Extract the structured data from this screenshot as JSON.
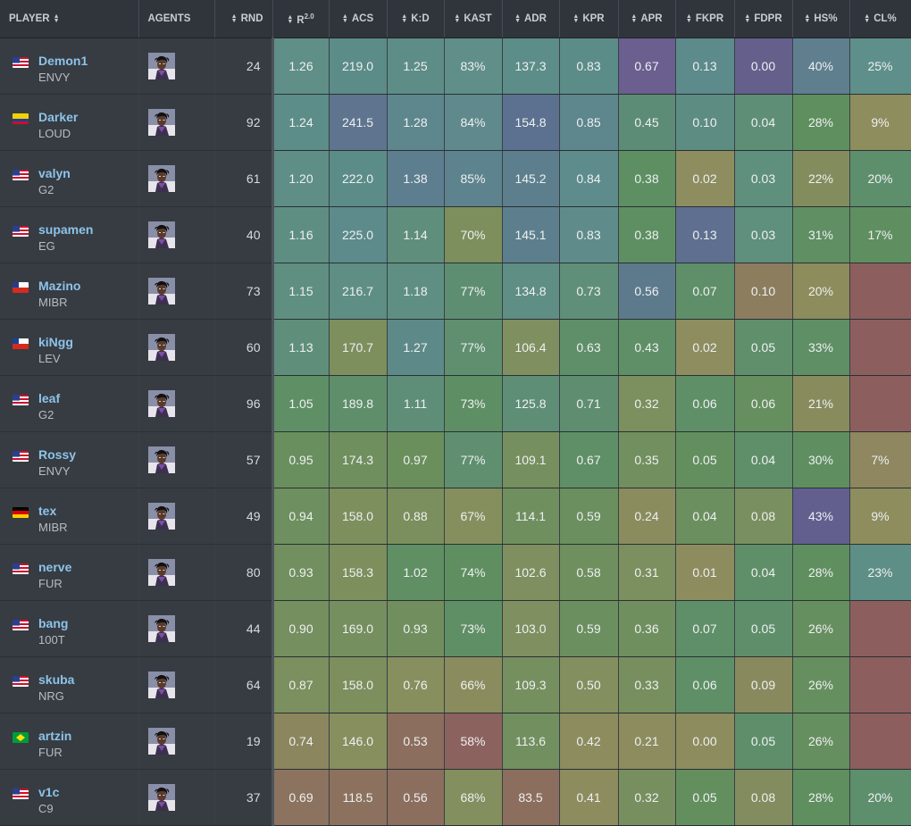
{
  "columns": {
    "player": "PLAYER",
    "agents": "AGENTS",
    "rnd": "RND",
    "rating": "R",
    "rating_sup": "2.0",
    "acs": "ACS",
    "kd": "K:D",
    "kast": "KAST",
    "adr": "ADR",
    "kpr": "KPR",
    "apr": "APR",
    "fkpr": "FKPR",
    "fdpr": "FDPR",
    "hs": "HS%",
    "cl": "CL%"
  },
  "agent_icon": "agent-portrait-icon",
  "rows": [
    {
      "name": "Demon1",
      "team": "ENVY",
      "flag": "us",
      "rnd": "24",
      "rating": "1.26",
      "acs": "219.0",
      "kd": "1.25",
      "kast": "83%",
      "adr": "137.3",
      "kpr": "0.83",
      "apr": "0.67",
      "fkpr": "0.13",
      "fdpr": "0.00",
      "hs": "40%",
      "cl": "25%",
      "colors": [
        "#5f8f86",
        "#5c8c88",
        "#5d8d86",
        "#5f8f88",
        "#5d8d88",
        "#5c8c88",
        "#6a5f8f",
        "#5d8a8b",
        "#655f8c",
        "#5f7f8f",
        "#5e8f8b"
      ]
    },
    {
      "name": "Darker",
      "team": "LOUD",
      "flag": "co",
      "rnd": "92",
      "rating": "1.24",
      "acs": "241.5",
      "kd": "1.28",
      "kast": "84%",
      "adr": "154.8",
      "kpr": "0.85",
      "apr": "0.45",
      "fkpr": "0.10",
      "fdpr": "0.04",
      "hs": "28%",
      "cl": "9%",
      "colors": [
        "#5d8d88",
        "#5f758f",
        "#5d868d",
        "#5f898d",
        "#5b718f",
        "#5d868d",
        "#5c8c75",
        "#5d8c83",
        "#5e8e76",
        "#5f8f5f",
        "#8d8d5e"
      ]
    },
    {
      "name": "valyn",
      "team": "G2",
      "flag": "us",
      "rnd": "61",
      "rating": "1.20",
      "acs": "222.0",
      "kd": "1.38",
      "kast": "85%",
      "adr": "145.2",
      "kpr": "0.84",
      "apr": "0.38",
      "fkpr": "0.02",
      "fdpr": "0.03",
      "hs": "22%",
      "cl": "20%",
      "colors": [
        "#5e8e86",
        "#5c8c88",
        "#5d7e8f",
        "#5d838e",
        "#5d7f8d",
        "#5e8c8d",
        "#5d8f62",
        "#8d8d60",
        "#5f8f7d",
        "#838c5d",
        "#5e8f6d"
      ]
    },
    {
      "name": "supamen",
      "team": "EG",
      "flag": "us",
      "rnd": "40",
      "rating": "1.16",
      "acs": "225.0",
      "kd": "1.14",
      "kast": "70%",
      "adr": "145.1",
      "kpr": "0.83",
      "apr": "0.38",
      "fkpr": "0.13",
      "fdpr": "0.03",
      "hs": "31%",
      "cl": "17%",
      "colors": [
        "#5e8e82",
        "#5d8a8b",
        "#5f8f7c",
        "#7c8f5c",
        "#5d7f8d",
        "#5f8c8b",
        "#5d8f62",
        "#5f6f8f",
        "#5f8f7d",
        "#5f8f63",
        "#5f8f60"
      ]
    },
    {
      "name": "Mazino",
      "team": "MIBR",
      "flag": "cl",
      "rnd": "73",
      "rating": "1.15",
      "acs": "216.7",
      "kd": "1.18",
      "kast": "77%",
      "adr": "134.8",
      "kpr": "0.73",
      "apr": "0.56",
      "fkpr": "0.07",
      "fdpr": "0.10",
      "hs": "20%",
      "cl": "",
      "colors": [
        "#5f8f80",
        "#5e8e84",
        "#5f8f82",
        "#5e8e72",
        "#5e8e84",
        "#5f8f78",
        "#5d7a8d",
        "#5f8f68",
        "#8c7d5e",
        "#8c8c5c",
        "#8c5e5e"
      ]
    },
    {
      "name": "kiNgg",
      "team": "LEV",
      "flag": "cl",
      "rnd": "60",
      "rating": "1.13",
      "acs": "170.7",
      "kd": "1.27",
      "kast": "77%",
      "adr": "106.4",
      "kpr": "0.63",
      "apr": "0.43",
      "fkpr": "0.02",
      "fdpr": "0.05",
      "hs": "33%",
      "cl": "",
      "colors": [
        "#5f8f7a",
        "#7d8f5c",
        "#5d8a88",
        "#5f8f6f",
        "#808f5f",
        "#5f8f68",
        "#5f8f66",
        "#8d8d5f",
        "#5f8f6b",
        "#5f8f65",
        "#8c5e5e"
      ]
    },
    {
      "name": "leaf",
      "team": "G2",
      "flag": "us",
      "rnd": "96",
      "rating": "1.05",
      "acs": "189.8",
      "kd": "1.11",
      "kast": "73%",
      "adr": "125.8",
      "kpr": "0.71",
      "apr": "0.32",
      "fkpr": "0.06",
      "fdpr": "0.06",
      "hs": "21%",
      "cl": "",
      "colors": [
        "#5f8f64",
        "#5f8f6a",
        "#5e8e78",
        "#5e8e64",
        "#5e8e76",
        "#5e8e6f",
        "#7b8f5f",
        "#5f8f66",
        "#668f5f",
        "#888c5d",
        "#8c5e5e"
      ]
    },
    {
      "name": "Rossy",
      "team": "ENVY",
      "flag": "us",
      "rnd": "57",
      "rating": "0.95",
      "acs": "174.3",
      "kd": "0.97",
      "kast": "77%",
      "adr": "109.1",
      "kpr": "0.67",
      "apr": "0.35",
      "fkpr": "0.05",
      "fdpr": "0.04",
      "hs": "30%",
      "cl": "7%",
      "colors": [
        "#6a8f5f",
        "#6f8f5e",
        "#6a8f5c",
        "#5f8f6f",
        "#768f5f",
        "#5f8f66",
        "#718f5f",
        "#638f5f",
        "#5f8f68",
        "#5f8f61",
        "#8e875f"
      ]
    },
    {
      "name": "tex",
      "team": "MIBR",
      "flag": "de",
      "rnd": "49",
      "rating": "0.94",
      "acs": "158.0",
      "kd": "0.88",
      "kast": "67%",
      "adr": "114.1",
      "kpr": "0.59",
      "apr": "0.24",
      "fkpr": "0.04",
      "fdpr": "0.08",
      "hs": "43%",
      "cl": "9%",
      "colors": [
        "#6e8f5f",
        "#7c8f5d",
        "#7a8f5d",
        "#858f5e",
        "#708f5f",
        "#6b8f5f",
        "#8a8c5e",
        "#6b8f5f",
        "#798f5f",
        "#625f8f",
        "#8d8d5e"
      ]
    },
    {
      "name": "nerve",
      "team": "FUR",
      "flag": "us",
      "rnd": "80",
      "rating": "0.93",
      "acs": "158.3",
      "kd": "1.02",
      "kast": "74%",
      "adr": "102.6",
      "kpr": "0.58",
      "apr": "0.31",
      "fkpr": "0.01",
      "fdpr": "0.04",
      "hs": "28%",
      "cl": "23%",
      "colors": [
        "#718f5f",
        "#7c8f5d",
        "#5f8f62",
        "#5f8f61",
        "#7f8f5f",
        "#6f8f5f",
        "#7b8f5f",
        "#8d8c5f",
        "#5f8f68",
        "#5f8f5f",
        "#5e8f86"
      ]
    },
    {
      "name": "bang",
      "team": "100T",
      "flag": "us",
      "rnd": "44",
      "rating": "0.90",
      "acs": "169.0",
      "kd": "0.93",
      "kast": "73%",
      "adr": "103.0",
      "kpr": "0.59",
      "apr": "0.36",
      "fkpr": "0.07",
      "fdpr": "0.05",
      "hs": "26%",
      "cl": "",
      "colors": [
        "#758f5f",
        "#758f5f",
        "#718f5e",
        "#5f8f64",
        "#7f8f5f",
        "#6b8f5f",
        "#6f8f5f",
        "#5f8f68",
        "#5f8f6a",
        "#668f5f",
        "#8c5e5e"
      ]
    },
    {
      "name": "skuba",
      "team": "NRG",
      "flag": "us",
      "rnd": "64",
      "rating": "0.87",
      "acs": "158.0",
      "kd": "0.76",
      "kast": "66%",
      "adr": "109.3",
      "kpr": "0.50",
      "apr": "0.33",
      "fkpr": "0.06",
      "fdpr": "0.09",
      "hs": "26%",
      "cl": "",
      "colors": [
        "#7b8f5f",
        "#7c8f5d",
        "#878f5f",
        "#8a8c5e",
        "#768f5f",
        "#838f5f",
        "#778f5f",
        "#5f8f66",
        "#888a5e",
        "#668f5f",
        "#8c5e5e"
      ]
    },
    {
      "name": "artzin",
      "team": "FUR",
      "flag": "br",
      "rnd": "19",
      "rating": "0.74",
      "acs": "146.0",
      "kd": "0.53",
      "kast": "58%",
      "adr": "113.6",
      "kpr": "0.42",
      "apr": "0.21",
      "fkpr": "0.00",
      "fdpr": "0.05",
      "hs": "26%",
      "cl": "",
      "colors": [
        "#8c865e",
        "#878f5e",
        "#8c6e5e",
        "#8c625f",
        "#718f5f",
        "#8c8c5e",
        "#8c8c5e",
        "#8c8c5e",
        "#5f8f6a",
        "#668f5f",
        "#8c5e5e"
      ]
    },
    {
      "name": "v1c",
      "team": "C9",
      "flag": "us",
      "rnd": "37",
      "rating": "0.69",
      "acs": "118.5",
      "kd": "0.56",
      "kast": "68%",
      "adr": "83.5",
      "kpr": "0.41",
      "apr": "0.32",
      "fkpr": "0.05",
      "fdpr": "0.08",
      "hs": "28%",
      "cl": "20%",
      "colors": [
        "#8c735f",
        "#8c725e",
        "#8c6e5e",
        "#838f5e",
        "#8c6e5e",
        "#8c8c5e",
        "#778f5f",
        "#638f5f",
        "#838c5e",
        "#5f8f5f",
        "#5e8f6d"
      ]
    }
  ]
}
